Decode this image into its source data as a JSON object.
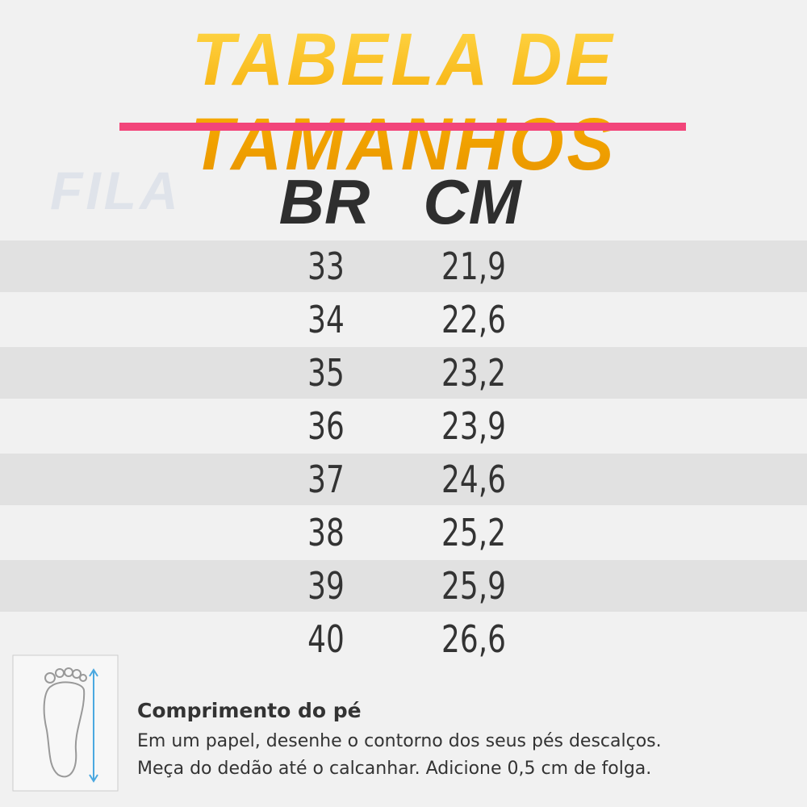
{
  "header": {
    "title": "TABELA DE TAMANHOS",
    "logo": "FILA"
  },
  "table": {
    "headers": [
      "BR",
      "CM"
    ],
    "rows": [
      [
        "33",
        "21,9"
      ],
      [
        "34",
        "22,6"
      ],
      [
        "35",
        "23,2"
      ],
      [
        "36",
        "23,9"
      ],
      [
        "37",
        "24,6"
      ],
      [
        "38",
        "25,2"
      ],
      [
        "39",
        "25,9"
      ],
      [
        "40",
        "26,6"
      ]
    ]
  },
  "footer": {
    "title": "Comprimento do pé",
    "lines": [
      "Em um papel, desenhe o contorno dos seus pés descalços.",
      "Meça do dedão até o calcanhar. Adicione 0,5 cm de folga."
    ]
  }
}
